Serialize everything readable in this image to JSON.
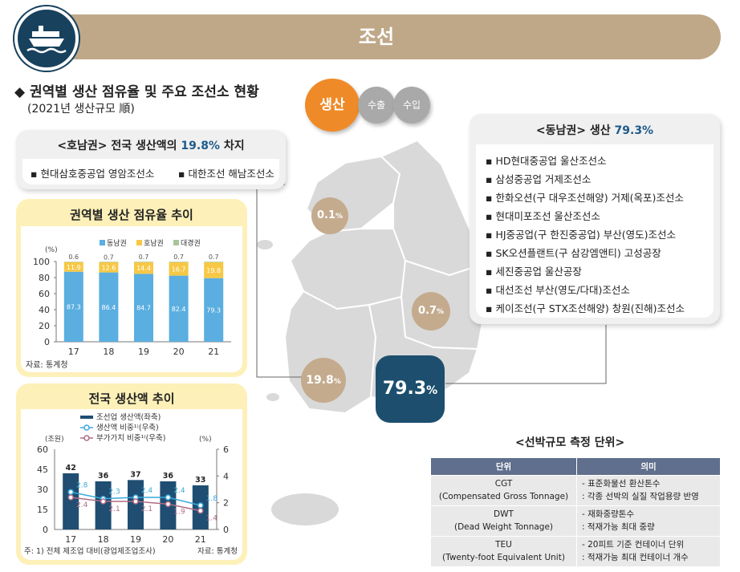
{
  "header": {
    "title": "조선",
    "ship_icon": "ship-icon"
  },
  "section": {
    "title": "◆ 권역별 생산 점유율 및 주요 조선소 현황",
    "subtitle": "(2021년 생산규모 順)"
  },
  "honam": {
    "title_prefix": "<호남권> 전국 생산액의 ",
    "title_value": "19.8%",
    "title_suffix": " 차지",
    "items": [
      "▪ 현대삼호중공업 영암조선소",
      "▪ 대한조선 해남조선소"
    ]
  },
  "tabs": {
    "production": "생산",
    "export": "수출",
    "import": "수입"
  },
  "dongnam": {
    "title_prefix": "<동남권> 생산 ",
    "title_value": "79.3%",
    "items": [
      "▪ HD현대중공업 울산조선소",
      "▪ 삼성중공업 거제조선소",
      "▪ 한화오션(구 대우조선해양) 거제(옥포)조선소",
      "▪ 현대미포조선 울산조선소",
      "▪ HJ중공업(구 한진중공업) 부산(영도)조선소",
      "▪ SK오션플랜트(구 삼강엠앤티) 고성공장",
      "▪ 세진중공업 울산공장",
      "▪ 대선조선 부산(영도/다대)조선소",
      "▪ 케이조선(구 STX조선해양) 창원(진해)조선소"
    ]
  },
  "map": {
    "bubbles": [
      {
        "value": "0.1",
        "unit": "%"
      },
      {
        "value": "0.7",
        "unit": "%"
      },
      {
        "value": "19.8",
        "unit": "%"
      },
      {
        "value": "79.3",
        "unit": "%"
      }
    ],
    "colors": {
      "land": "#d9d9d9",
      "bubble": "#c4ab8e",
      "main_bubble": "#1d4e6e"
    }
  },
  "chart_data": [
    {
      "type": "bar",
      "stacked": true,
      "title": "권역별 생산 점유율 추이",
      "unit_label": "(%)",
      "categories": [
        "17",
        "18",
        "19",
        "20",
        "21"
      ],
      "series": [
        {
          "name": "동남권",
          "color": "#5aaee0",
          "values": [
            87.3,
            86.4,
            84.7,
            82.4,
            79.3
          ]
        },
        {
          "name": "호남권",
          "color": "#f7c845",
          "values": [
            11.9,
            12.6,
            14.4,
            16.7,
            19.8
          ]
        },
        {
          "name": "대경권",
          "color": "#a7c79b",
          "values": [
            0.6,
            0.7,
            0.7,
            0.7,
            0.7
          ]
        }
      ],
      "yticks": [
        "0",
        "20",
        "40",
        "60",
        "80",
        "100"
      ],
      "ylim": [
        0,
        100
      ],
      "source": "자료: 통계청"
    },
    {
      "type": "bar+line",
      "title": "전국 생산액 추이",
      "left_unit": "(조원)",
      "right_unit": "(%)",
      "categories": [
        "17",
        "18",
        "19",
        "20",
        "21"
      ],
      "bars": {
        "name": "조선업 생산액(좌축)",
        "color": "#1f4e72",
        "values": [
          42,
          36,
          37,
          36,
          33
        ]
      },
      "lines": [
        {
          "name": "생산액 비중¹⁾(우축)",
          "color": "#3aa9dc",
          "values": [
            2.8,
            2.3,
            2.4,
            2.4,
            1.8
          ],
          "labels": [
            "2.8",
            "2.3",
            "2.4",
            "2.4",
            "1.8"
          ]
        },
        {
          "name": "부가가치 비중¹⁾(우축)",
          "color": "#b06b84",
          "values": [
            2.4,
            2.1,
            2.1,
            1.9,
            1.4
          ],
          "labels": [
            "2.4",
            "2.1",
            "2.1",
            "1.9",
            "1.4"
          ]
        }
      ],
      "left_ticks": [
        "0",
        "15",
        "30",
        "45",
        "60"
      ],
      "right_ticks": [
        "0",
        "2",
        "4",
        "6"
      ],
      "left_ylim": [
        0,
        60
      ],
      "right_ylim": [
        0,
        6
      ],
      "note": "주: 1) 전체 제조업 대비(광업제조업조사)",
      "source": "자료: 통계청"
    }
  ],
  "units_table": {
    "title": "<선박규모 측정 단위>",
    "headers": [
      "단위",
      "의미"
    ],
    "rows": [
      {
        "abbr": "CGT",
        "full": "(Compensated Gross Tonnage)",
        "meaning1": "- 표준화물선 환산톤수",
        "meaning2": ": 각종 선박의 실질 작업용량 반영"
      },
      {
        "abbr": "DWT",
        "full": "(Dead Weight Tonnage)",
        "meaning1": "- 재화중량톤수",
        "meaning2": ": 적재가능 최대 중량"
      },
      {
        "abbr": "TEU",
        "full": "(Twenty-foot Equivalent Unit)",
        "meaning1": "- 20피트 기준 컨테이너 단위",
        "meaning2": ": 적재가능 최대 컨테이너 개수"
      }
    ]
  }
}
